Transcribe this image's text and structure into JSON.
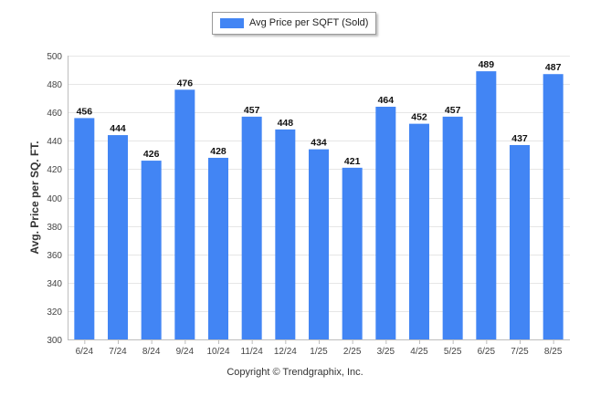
{
  "chart_data": {
    "type": "bar",
    "categories": [
      "6/24",
      "7/24",
      "8/24",
      "9/24",
      "10/24",
      "11/24",
      "12/24",
      "1/25",
      "2/25",
      "3/25",
      "4/25",
      "5/25",
      "6/25",
      "7/25",
      "8/25"
    ],
    "series": [
      {
        "name": "Avg Price per SQFT (Sold)",
        "values": [
          456,
          444,
          426,
          476,
          428,
          457,
          448,
          434,
          421,
          464,
          452,
          457,
          489,
          437,
          487
        ],
        "color": "#4285f4"
      }
    ],
    "ylabel": "Avg. Price per SQ. FT.",
    "xlabel": "",
    "ylim": [
      300,
      500
    ],
    "yticks": [
      300,
      320,
      340,
      360,
      380,
      400,
      420,
      440,
      460,
      480,
      500
    ],
    "grid": true,
    "legend_position": "top-center",
    "data_labels": true
  },
  "footer": {
    "copyright": "Copyright © Trendgraphix, Inc."
  }
}
